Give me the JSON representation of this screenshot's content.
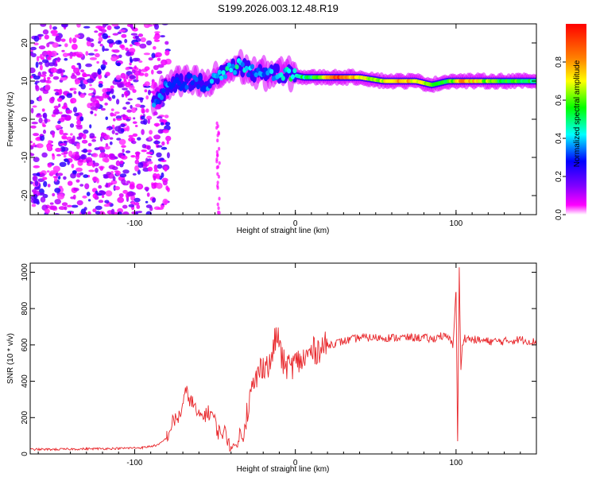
{
  "title": "S199.2026.003.12.48.R19",
  "chart_data": [
    {
      "type": "heatmap",
      "title": "S199.2026.003.12.48.R19",
      "xlabel": "Height of straight line (km)",
      "ylabel": "Frequency (Hz)",
      "xlim": [
        -165,
        150
      ],
      "ylim": [
        -25,
        25
      ],
      "xticks": [
        -100,
        0,
        100
      ],
      "yticks": [
        -20,
        -10,
        0,
        10,
        20
      ],
      "colorbar": {
        "label": "Normalized spectral amplitude",
        "range": [
          0.0,
          1.0
        ],
        "ticks": [
          "0.0",
          "0.2",
          "0.4",
          "0.6",
          "0.8"
        ],
        "tick_values": [
          0.0,
          0.2,
          0.4,
          0.6,
          0.8
        ],
        "colormap": [
          "#ffffff",
          "#ff00ff",
          "#8000ff",
          "#0000ff",
          "#00ffff",
          "#00ff00",
          "#ffff00",
          "#ff8000",
          "#ff0000"
        ]
      },
      "noise_region_km": [
        -165,
        -85
      ],
      "ridge": [
        {
          "x": -88,
          "freq": 5,
          "amp": 0.35
        },
        {
          "x": -78,
          "freq": 9,
          "amp": 0.3
        },
        {
          "x": -65,
          "freq": 10,
          "amp": 0.25
        },
        {
          "x": -55,
          "freq": 9,
          "amp": 0.3
        },
        {
          "x": -45,
          "freq": 12,
          "amp": 0.4
        },
        {
          "x": -35,
          "freq": 14,
          "amp": 0.42
        },
        {
          "x": -25,
          "freq": 12,
          "amp": 0.35
        },
        {
          "x": -15,
          "freq": 12,
          "amp": 0.35
        },
        {
          "x": -5,
          "freq": 12,
          "amp": 0.45
        },
        {
          "x": 5,
          "freq": 11,
          "amp": 0.5
        },
        {
          "x": 15,
          "freq": 11,
          "amp": 0.55
        },
        {
          "x": 25,
          "freq": 11,
          "amp": 0.92
        },
        {
          "x": 40,
          "freq": 11,
          "amp": 0.7
        },
        {
          "x": 55,
          "freq": 10,
          "amp": 0.65
        },
        {
          "x": 65,
          "freq": 10,
          "amp": 0.8
        },
        {
          "x": 75,
          "freq": 10,
          "amp": 0.7
        },
        {
          "x": 85,
          "freq": 9,
          "amp": 0.6
        },
        {
          "x": 95,
          "freq": 10,
          "amp": 0.55
        },
        {
          "x": 105,
          "freq": 10,
          "amp": 0.8
        },
        {
          "x": 120,
          "freq": 10,
          "amp": 0.6
        },
        {
          "x": 150,
          "freq": 10,
          "amp": 0.5
        }
      ]
    },
    {
      "type": "line",
      "xlabel": "Height of straight line (km)",
      "ylabel": "SNR (10 * v/v)",
      "xlim": [
        -165,
        150
      ],
      "ylim": [
        0,
        1050
      ],
      "xticks": [
        -100,
        0,
        100
      ],
      "yticks": [
        0,
        200,
        400,
        600,
        800,
        1000
      ],
      "color": "#e8262a",
      "series": [
        {
          "name": "SNR",
          "x": [
            -165,
            -150,
            -130,
            -110,
            -95,
            -85,
            -80,
            -76,
            -72,
            -68,
            -64,
            -60,
            -56,
            -52,
            -48,
            -44,
            -40,
            -36,
            -32,
            -28,
            -24,
            -20,
            -16,
            -12,
            -10,
            -8,
            -4,
            0,
            5,
            10,
            15,
            20,
            25,
            30,
            40,
            50,
            60,
            70,
            80,
            85,
            90,
            95,
            98,
            100,
            101,
            102,
            103,
            104,
            105,
            110,
            120,
            130,
            140,
            150
          ],
          "values": [
            25,
            25,
            28,
            30,
            35,
            50,
            90,
            180,
            210,
            340,
            280,
            200,
            220,
            230,
            120,
            120,
            40,
            50,
            150,
            320,
            420,
            500,
            480,
            650,
            620,
            500,
            480,
            500,
            520,
            560,
            580,
            600,
            610,
            620,
            640,
            640,
            640,
            640,
            640,
            630,
            650,
            640,
            600,
            900,
            50,
            1030,
            450,
            600,
            640,
            630,
            620,
            620,
            630,
            615
          ]
        }
      ]
    }
  ]
}
